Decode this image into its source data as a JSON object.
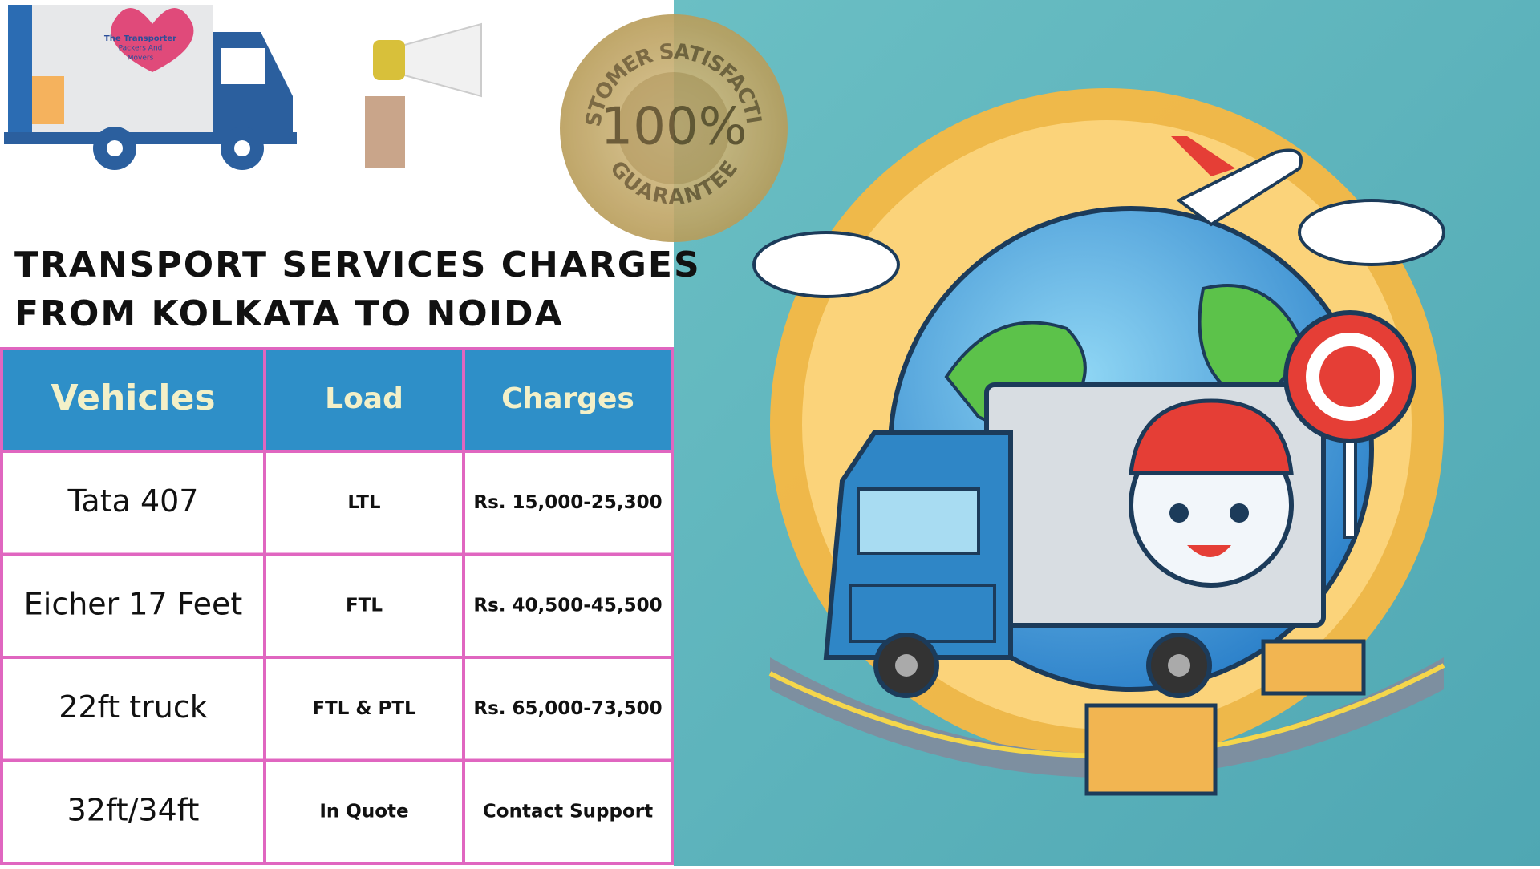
{
  "logo": {
    "lines": [
      "The Transporter",
      "Packers And",
      "Movers"
    ]
  },
  "badge": {
    "top": "CUSTOMER SATISFACTION",
    "center": "100%",
    "bottom": "GUARANTEE"
  },
  "header": {
    "title_lines": [
      "TRANSPORT SERVICES CHARGES",
      "FROM KOLKATA TO NOIDA"
    ]
  },
  "table": {
    "columns": [
      "Vehicles",
      "Load",
      "Charges"
    ],
    "rows": [
      [
        "Tata 407",
        "LTL",
        "Rs. 15,000-25,300"
      ],
      [
        "Eicher 17 Feet",
        "FTL",
        "Rs. 40,500-45,500"
      ],
      [
        "22ft truck",
        "FTL & PTL",
        "Rs. 65,000-73,500"
      ],
      [
        "32ft/34ft",
        "In Quote",
        "Contact Support"
      ]
    ]
  }
}
